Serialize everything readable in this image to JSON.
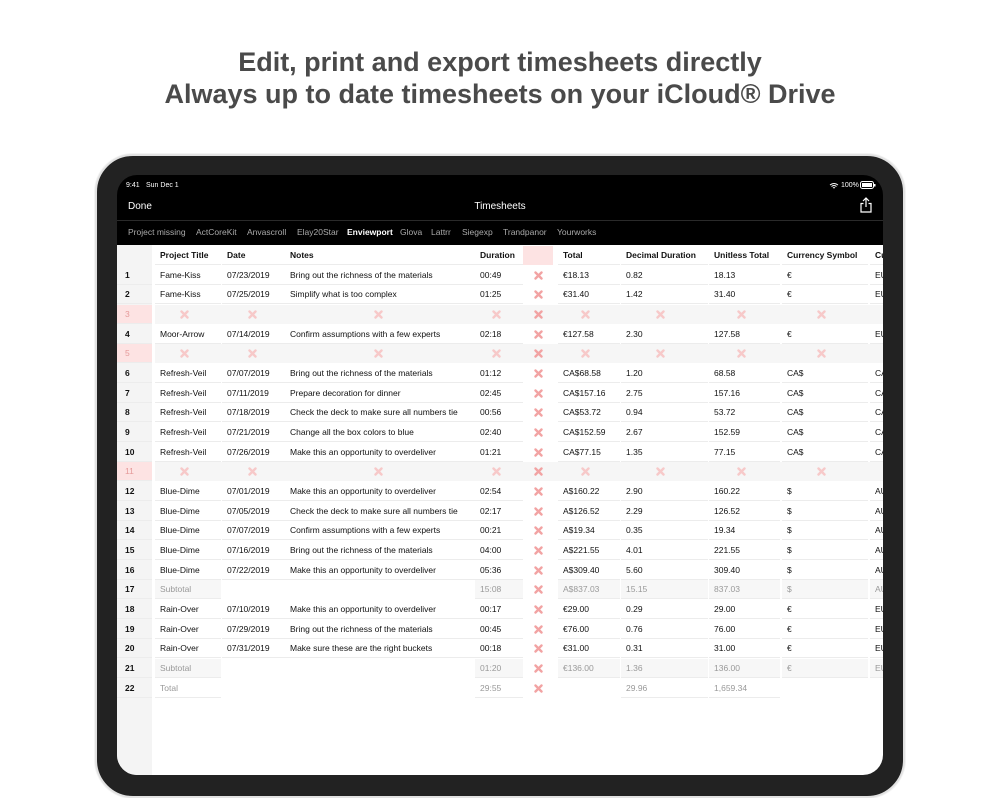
{
  "headline": [
    "Edit, print and export timesheets directly",
    "Always up to date timesheets on your iCloud® Drive"
  ],
  "status_bar": {
    "time": "9:41",
    "date": "Sun Dec 1",
    "battery": "100%"
  },
  "nav": {
    "left": "Done",
    "title": "Timesheets"
  },
  "tabs": [
    "Project missing",
    "ActCoreKit",
    "Anvascroll",
    "Elay20Star",
    "Enviewport",
    "Glova",
    "Lattrr",
    "Siegexp",
    "Trandpanor",
    "Yourworks"
  ],
  "selected_tab": 4,
  "table": {
    "columns": [
      "Project Title",
      "Date",
      "Notes",
      "Duration",
      "Total",
      "Decimal Duration",
      "Unitless Total",
      "Currency Symbol",
      "Cu"
    ],
    "rows": [
      {
        "number": 1,
        "cells": [
          "Fame-Kiss",
          "07/23/2019",
          "Bring out the richness of the materials",
          "00:49",
          "€18.13",
          "0.82",
          "18.13",
          "€",
          "EU"
        ]
      },
      {
        "number": 2,
        "cells": [
          "Fame-Kiss",
          "07/25/2019",
          "Simplify what is too complex",
          "01:25",
          "€31.40",
          "1.42",
          "31.40",
          "€",
          "EU"
        ]
      },
      {
        "number": 3
      },
      {
        "number": 4,
        "cells": [
          "Moor-Arrow",
          "07/14/2019",
          "Confirm assumptions with a few experts",
          "02:18",
          "€127.58",
          "2.30",
          "127.58",
          "€",
          "EU"
        ]
      },
      {
        "number": 5
      },
      {
        "number": 6,
        "cells": [
          "Refresh-Veil",
          "07/07/2019",
          "Bring out the richness of the materials",
          "01:12",
          "CA$68.58",
          "1.20",
          "68.58",
          "CA$",
          "CA"
        ]
      },
      {
        "number": 7,
        "cells": [
          "Refresh-Veil",
          "07/11/2019",
          "Prepare decoration for dinner",
          "02:45",
          "CA$157.16",
          "2.75",
          "157.16",
          "CA$",
          "CA"
        ]
      },
      {
        "number": 8,
        "cells": [
          "Refresh-Veil",
          "07/18/2019",
          "Check the deck to make sure all numbers tie",
          "00:56",
          "CA$53.72",
          "0.94",
          "53.72",
          "CA$",
          "CA"
        ]
      },
      {
        "number": 9,
        "cells": [
          "Refresh-Veil",
          "07/21/2019",
          "Change all the box colors to blue",
          "02:40",
          "CA$152.59",
          "2.67",
          "152.59",
          "CA$",
          "CA"
        ]
      },
      {
        "number": 10,
        "cells": [
          "Refresh-Veil",
          "07/26/2019",
          "Make this an opportunity to overdeliver",
          "01:21",
          "CA$77.15",
          "1.35",
          "77.15",
          "CA$",
          "CA"
        ]
      },
      {
        "number": 11
      },
      {
        "number": 12,
        "cells": [
          "Blue-Dime",
          "07/01/2019",
          "Make this an opportunity to overdeliver",
          "02:54",
          "A$160.22",
          "2.90",
          "160.22",
          "$",
          "AU"
        ]
      },
      {
        "number": 13,
        "cells": [
          "Blue-Dime",
          "07/05/2019",
          "Check the deck to make sure all numbers tie",
          "02:17",
          "A$126.52",
          "2.29",
          "126.52",
          "$",
          "AU"
        ]
      },
      {
        "number": 14,
        "cells": [
          "Blue-Dime",
          "07/07/2019",
          "Confirm assumptions with a few experts",
          "00:21",
          "A$19.34",
          "0.35",
          "19.34",
          "$",
          "AU"
        ]
      },
      {
        "number": 15,
        "cells": [
          "Blue-Dime",
          "07/16/2019",
          "Bring out the richness of the materials",
          "04:00",
          "A$221.55",
          "4.01",
          "221.55",
          "$",
          "AU"
        ]
      },
      {
        "number": 16,
        "cells": [
          "Blue-Dime",
          "07/22/2019",
          "Make this an opportunity to overdeliver",
          "05:36",
          "A$309.40",
          "5.60",
          "309.40",
          "$",
          "AU"
        ]
      },
      {
        "number": 17,
        "cells": [
          "Subtotal",
          null,
          null,
          "15:08",
          "A$837.03",
          "15.15",
          "837.03",
          "$",
          "AU"
        ]
      },
      {
        "number": 18,
        "cells": [
          "Rain-Over",
          "07/10/2019",
          "Make this an opportunity to overdeliver",
          "00:17",
          "€29.00",
          "0.29",
          "29.00",
          "€",
          "EU"
        ]
      },
      {
        "number": 19,
        "cells": [
          "Rain-Over",
          "07/29/2019",
          "Bring out the richness of the materials",
          "00:45",
          "€76.00",
          "0.76",
          "76.00",
          "€",
          "EU"
        ]
      },
      {
        "number": 20,
        "cells": [
          "Rain-Over",
          "07/31/2019",
          "Make sure these are the right buckets",
          "00:18",
          "€31.00",
          "0.31",
          "31.00",
          "€",
          "EU"
        ]
      },
      {
        "number": 21,
        "cells": [
          "Subtotal",
          null,
          null,
          "01:20",
          "€136.00",
          "1.36",
          "136.00",
          "€",
          "EU"
        ]
      },
      {
        "number": 22,
        "cells": [
          "Total",
          null,
          null,
          "29:55",
          null,
          "29.96",
          "1,659.34",
          null,
          null
        ]
      }
    ]
  }
}
